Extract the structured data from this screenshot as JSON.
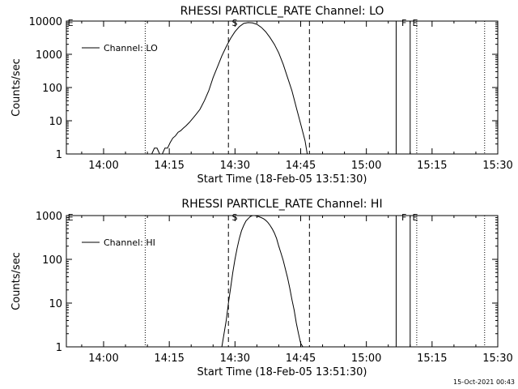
{
  "footer_timestamp": "15-Oct-2021 00:43",
  "chart_data": [
    {
      "type": "line",
      "title": "RHESSI PARTICLE_RATE Channel: LO",
      "xlabel": "Start Time (18-Feb-05 13:51:30)",
      "ylabel": "Counts/sec",
      "yscale": "log",
      "ylim": [
        1,
        10000
      ],
      "y_ticks": [
        "1",
        "10",
        "100",
        "1000",
        "10000"
      ],
      "x_tick_labels": [
        "14:00",
        "14:15",
        "14:30",
        "14:45",
        "15:00",
        "15:15",
        "15:30"
      ],
      "x_tick_minutes": [
        0,
        15,
        30,
        45,
        60,
        75,
        90
      ],
      "xlim_minutes": [
        -8.5,
        90
      ],
      "series": [
        {
          "name": "Channel: LO",
          "x_minutes": [
            11.0,
            11.6,
            12.2,
            12.8,
            13.4,
            14.0,
            14.6,
            15.2,
            15.8,
            16.4,
            17.0,
            17.6,
            18.2,
            18.8,
            19.6,
            20.4,
            21.2,
            22.0,
            23.0,
            24.0,
            25.0,
            26.0,
            27.0,
            28.0,
            29.0,
            30.0,
            31.0,
            32.0,
            33.0,
            34.0,
            35.0,
            36.0,
            37.0,
            38.0,
            39.0,
            40.0,
            41.0,
            42.0,
            43.0,
            44.0,
            45.0,
            46.0,
            46.5
          ],
          "y": [
            1,
            1.5,
            1.5,
            1,
            1,
            1.5,
            1.5,
            2.2,
            3,
            3.5,
            4.5,
            5,
            6,
            7,
            9,
            12,
            16,
            22,
            40,
            80,
            200,
            420,
            900,
            1700,
            3000,
            4800,
            6800,
            8500,
            9000,
            8800,
            8000,
            6500,
            4800,
            3200,
            2000,
            1100,
            500,
            200,
            80,
            25,
            8,
            2.5,
            1
          ]
        }
      ],
      "annotations": [
        {
          "label": "E",
          "x_minutes": -8.2
        },
        {
          "label": "S",
          "x_minutes": 29.3
        },
        {
          "label": "F",
          "x_minutes": 68.0
        },
        {
          "label": "E",
          "x_minutes": 70.5
        }
      ],
      "dashed_lines_minutes": [
        28.5,
        47.0
      ],
      "dotted_lines_minutes": [
        9.5,
        71.5,
        87.0
      ],
      "solid_lines_minutes": [
        66.8,
        70.0
      ]
    },
    {
      "type": "line",
      "title": "RHESSI PARTICLE_RATE Channel: HI",
      "xlabel": "Start Time (18-Feb-05 13:51:30)",
      "ylabel": "Counts/sec",
      "yscale": "log",
      "ylim": [
        1,
        1000
      ],
      "y_ticks": [
        "1",
        "10",
        "100",
        "1000"
      ],
      "x_tick_labels": [
        "14:00",
        "14:15",
        "14:30",
        "14:45",
        "15:00",
        "15:15",
        "15:30"
      ],
      "x_tick_minutes": [
        0,
        15,
        30,
        45,
        60,
        75,
        90
      ],
      "xlim_minutes": [
        -8.5,
        90
      ],
      "series": [
        {
          "name": "Channel: HI",
          "x_minutes": [
            27.0,
            27.5,
            28.0,
            28.5,
            29.0,
            29.5,
            30.0,
            30.5,
            31.0,
            31.5,
            32.0,
            32.5,
            33.0,
            33.5,
            34.0,
            34.5,
            35.0,
            35.5,
            36.0,
            36.5,
            37.0,
            37.5,
            38.0,
            38.5,
            39.0,
            39.5,
            40.0,
            40.5,
            41.0,
            41.5,
            42.0,
            42.5,
            43.0,
            43.5,
            44.0,
            44.5,
            45.0,
            45.5
          ],
          "y": [
            1,
            2,
            4,
            10,
            22,
            50,
            100,
            180,
            300,
            450,
            600,
            750,
            850,
            950,
            1000,
            1000,
            980,
            940,
            900,
            850,
            780,
            700,
            600,
            500,
            400,
            300,
            200,
            140,
            95,
            60,
            38,
            22,
            12,
            7,
            3.5,
            2,
            1.2,
            1
          ]
        }
      ],
      "annotations": [
        {
          "label": "E",
          "x_minutes": -8.2
        },
        {
          "label": "S",
          "x_minutes": 29.3
        },
        {
          "label": "F",
          "x_minutes": 68.0
        },
        {
          "label": "E",
          "x_minutes": 70.5
        }
      ],
      "dashed_lines_minutes": [
        28.5,
        47.0
      ],
      "dotted_lines_minutes": [
        9.5,
        71.5,
        87.0
      ],
      "solid_lines_minutes": [
        66.8,
        70.0
      ]
    }
  ]
}
